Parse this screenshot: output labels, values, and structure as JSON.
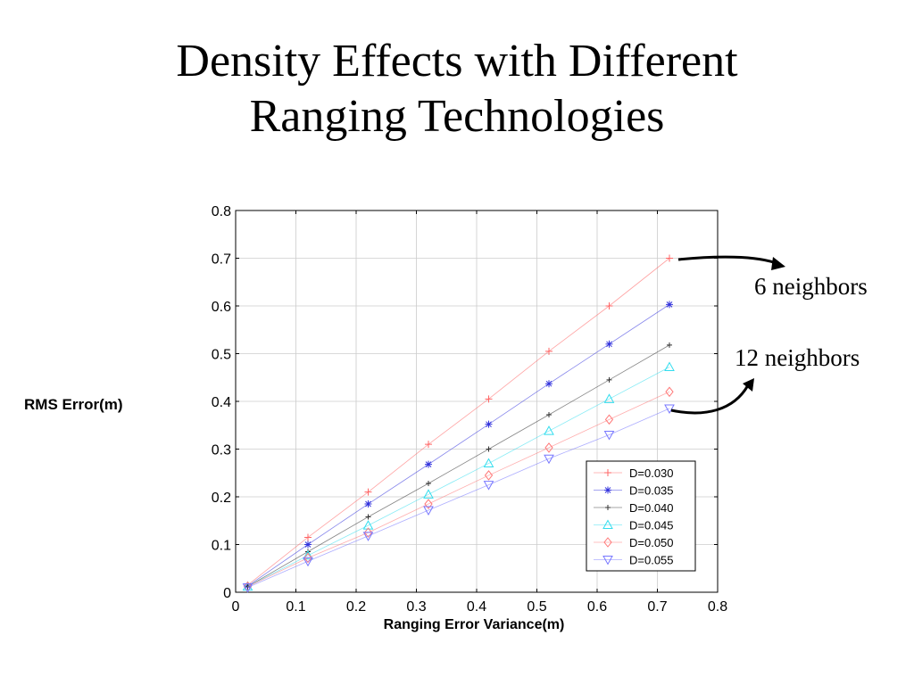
{
  "slide": {
    "title_line1": "Density Effects with Different",
    "title_line2": "Ranging Technologies"
  },
  "annotations": [
    {
      "text": "6 neighbors"
    },
    {
      "text": "12 neighbors"
    }
  ],
  "chart_data": {
    "type": "line",
    "title": "",
    "xlabel": "Ranging Error Variance(m)",
    "ylabel": "RMS Error(m)",
    "xlim": [
      0,
      0.8
    ],
    "ylim": [
      0,
      0.8
    ],
    "xticks": [
      "0",
      "0.1",
      "0.2",
      "0.3",
      "0.4",
      "0.5",
      "0.6",
      "0.7",
      "0.8"
    ],
    "yticks": [
      "0",
      "0.1",
      "0.2",
      "0.3",
      "0.4",
      "0.5",
      "0.6",
      "0.7",
      "0.8"
    ],
    "grid": true,
    "legend_position": "bottom-right",
    "x": [
      0.02,
      0.12,
      0.22,
      0.32,
      0.42,
      0.52,
      0.62,
      0.72
    ],
    "series": [
      {
        "name": "D=0.030",
        "color": "#ff6666",
        "marker": "plus",
        "values": [
          0.015,
          0.115,
          0.21,
          0.31,
          0.405,
          0.505,
          0.6,
          0.7
        ]
      },
      {
        "name": "D=0.035",
        "color": "#3333dd",
        "marker": "star",
        "values": [
          0.013,
          0.1,
          0.185,
          0.268,
          0.352,
          0.437,
          0.52,
          0.603
        ]
      },
      {
        "name": "D=0.040",
        "color": "#333333",
        "marker": "dot",
        "values": [
          0.012,
          0.085,
          0.158,
          0.228,
          0.3,
          0.372,
          0.445,
          0.518
        ]
      },
      {
        "name": "D=0.045",
        "color": "#33ddee",
        "marker": "triangle-up",
        "values": [
          0.012,
          0.077,
          0.14,
          0.205,
          0.27,
          0.338,
          0.405,
          0.472
        ]
      },
      {
        "name": "D=0.050",
        "color": "#ff7777",
        "marker": "diamond",
        "values": [
          0.012,
          0.072,
          0.125,
          0.185,
          0.245,
          0.303,
          0.362,
          0.42
        ]
      },
      {
        "name": "D=0.055",
        "color": "#7777ff",
        "marker": "triangle-down",
        "values": [
          0.01,
          0.065,
          0.118,
          0.172,
          0.225,
          0.28,
          0.33,
          0.385
        ]
      }
    ]
  }
}
